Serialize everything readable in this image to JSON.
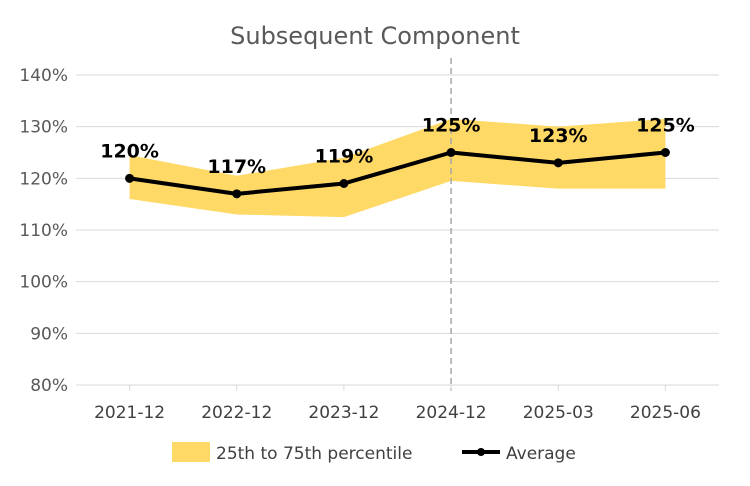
{
  "chart_data": {
    "type": "line",
    "title": "Subsequent Component",
    "categories": [
      "2021-12",
      "2022-12",
      "2023-12",
      "2024-12",
      "2025-03",
      "2025-06"
    ],
    "yticks": [
      "80%",
      "90%",
      "100%",
      "110%",
      "120%",
      "130%",
      "140%"
    ],
    "ylim": [
      80,
      140
    ],
    "grid": true,
    "legend_position": "bottom",
    "series": [
      {
        "name": "25th to 75th percentile",
        "kind": "band",
        "color": "#FFD966",
        "lower": [
          116,
          113,
          112.5,
          119.5,
          118,
          118
        ],
        "upper": [
          124.5,
          120.5,
          124,
          131.5,
          130,
          131.5
        ]
      },
      {
        "name": "Average",
        "kind": "line",
        "color": "#000000",
        "values": [
          120,
          117,
          119,
          125,
          123,
          125
        ],
        "labels": [
          "120%",
          "117%",
          "119%",
          "125%",
          "123%",
          "125%"
        ]
      }
    ],
    "annotations": [
      {
        "type": "vertical-dashed-line",
        "at_category": "2024-12",
        "color": "#A6A6A6"
      }
    ]
  }
}
